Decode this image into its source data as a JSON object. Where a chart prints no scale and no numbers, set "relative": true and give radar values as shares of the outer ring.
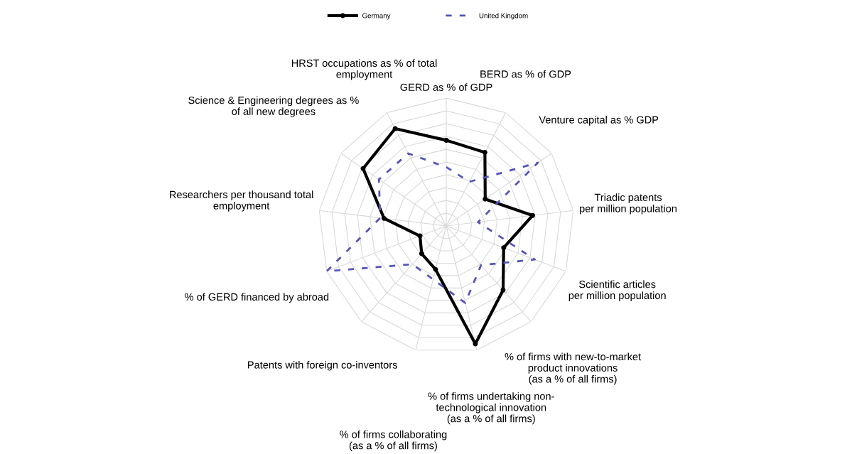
{
  "chart_data": {
    "type": "radar",
    "relative": true,
    "legend": "top",
    "grid": true,
    "categories": [
      "GERD as % of GDP",
      "BERD as % of GDP",
      "Venture capital as % GDP",
      "Triadic patents\nper million population",
      "Scientific articles\nper million population",
      "% of firms with new-to-market\nproduct innovations\n(as a % of all firms)",
      "% of firms undertaking non-\ntechnological innovation\n(as a % of all firms)",
      "% of firms collaborating\n(as a % of all firms)",
      "Patents with foreign co-inventors",
      "% of GERD financed by abroad",
      "Researchers per thousand total\nemployment",
      "Science & Engineering degrees as %\nof all new degrees",
      "HRST occupations as % of total\nemployment"
    ],
    "series": [
      {
        "name": "Germany",
        "color": "#000000",
        "marker": "circle",
        "line_style": "solid",
        "values": [
          0.67,
          0.65,
          0.37,
          0.68,
          0.48,
          0.67,
          0.95,
          0.35,
          0.29,
          0.22,
          0.49,
          0.79,
          0.86
        ]
      },
      {
        "name": "United Kingdom",
        "color": "#5555bb",
        "marker": "none",
        "line_style": "dashed",
        "values": [
          0.46,
          0.39,
          0.87,
          0.25,
          0.74,
          0.41,
          0.62,
          0.43,
          0.4,
          1.0,
          0.52,
          0.64,
          0.64
        ]
      }
    ]
  }
}
